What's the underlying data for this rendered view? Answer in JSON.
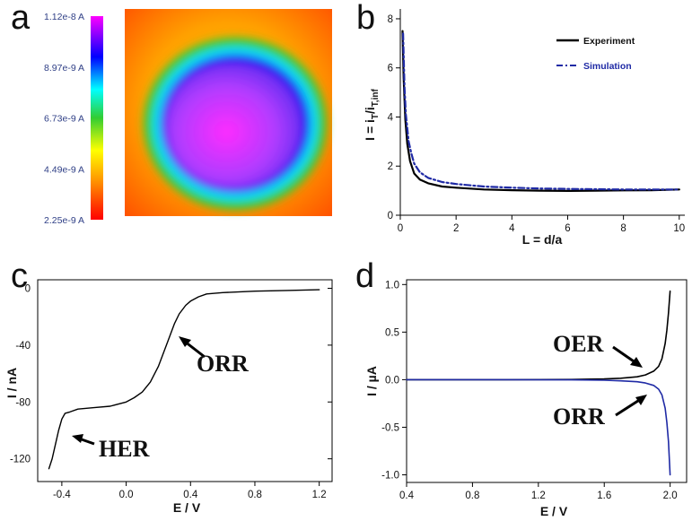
{
  "chart_data": [
    {
      "panel": "a",
      "type": "heatmap",
      "colorbar": {
        "ticks": [
          "1.12e-8 A",
          "8.97e-9 A",
          "6.73e-9 A",
          "4.49e-9 A",
          "2.25e-9 A"
        ],
        "min": 2.25e-09,
        "max": 1.12e-08,
        "colors": [
          "#ff0000",
          "#ff8c00",
          "#ffff00",
          "#32cd32",
          "#00ffff",
          "#0000ff",
          "#ff00ff"
        ]
      },
      "map": {
        "shape": "circular disk",
        "center_value": 1.12e-08,
        "background_value": 3.5e-09
      }
    },
    {
      "panel": "b",
      "type": "line",
      "xlabel": "L = d/a",
      "ylabel": "I = i",
      "ylabel_sub1": "T",
      "ylabel_mid": "/i",
      "ylabel_sub2": "T,inf",
      "xlim": [
        0,
        10.2
      ],
      "ylim": [
        0,
        8.4
      ],
      "xticks": [
        0,
        2,
        4,
        6,
        8,
        10
      ],
      "yticks": [
        0,
        2,
        4,
        6,
        8
      ],
      "legend": [
        {
          "label": "Experiment",
          "color": "#000000",
          "dash": "solid"
        },
        {
          "label": "Simulation",
          "color": "#1f2aa5",
          "dash": "dashdot"
        }
      ],
      "legend_position": "top-right",
      "series": [
        {
          "name": "Experiment",
          "color": "#000000",
          "x": [
            0.08,
            0.12,
            0.18,
            0.25,
            0.35,
            0.5,
            0.7,
            1.0,
            1.5,
            2.0,
            3.0,
            4.0,
            5.0,
            6.0,
            7.0,
            8.0,
            9.0,
            10.0
          ],
          "y": [
            7.5,
            5.6,
            3.9,
            2.9,
            2.2,
            1.7,
            1.45,
            1.3,
            1.17,
            1.12,
            1.05,
            1.02,
            1.0,
            0.99,
            1.0,
            1.01,
            1.02,
            1.05
          ]
        },
        {
          "name": "Simulation",
          "color": "#1f2aa5",
          "x": [
            0.1,
            0.15,
            0.2,
            0.3,
            0.4,
            0.5,
            0.7,
            1.0,
            1.5,
            2.0,
            3.0,
            4.0,
            5.0,
            6.0,
            7.0,
            8.0,
            9.0,
            10.0
          ],
          "y": [
            7.4,
            5.2,
            4.1,
            3.0,
            2.5,
            2.1,
            1.75,
            1.52,
            1.35,
            1.27,
            1.17,
            1.12,
            1.09,
            1.07,
            1.06,
            1.05,
            1.05,
            1.05
          ]
        }
      ]
    },
    {
      "panel": "c",
      "type": "line",
      "xlabel": "E / V",
      "ylabel": "I / nA",
      "xlim": [
        -0.55,
        1.28
      ],
      "ylim": [
        -136,
        6
      ],
      "xticks": [
        -0.4,
        0.0,
        0.4,
        0.8,
        1.2
      ],
      "xtick_labels": [
        "-0.4",
        "0.0",
        "0.4",
        "0.8",
        "1.2"
      ],
      "yticks": [
        0,
        -40,
        -80,
        -120
      ],
      "yticks_right": true,
      "annotations": [
        {
          "text": "ORR",
          "arrow_to": [
            0.32,
            -30
          ]
        },
        {
          "text": "HER",
          "arrow_to": [
            -0.37,
            -109
          ]
        }
      ],
      "series": [
        {
          "color": "#000000",
          "x": [
            -0.48,
            -0.46,
            -0.44,
            -0.42,
            -0.4,
            -0.38,
            -0.35,
            -0.3,
            -0.2,
            -0.1,
            0.0,
            0.05,
            0.1,
            0.15,
            0.2,
            0.25,
            0.3,
            0.33,
            0.37,
            0.4,
            0.45,
            0.5,
            0.6,
            0.8,
            1.0,
            1.2
          ],
          "y": [
            -127,
            -120,
            -110,
            -100,
            -92,
            -88,
            -87,
            -85,
            -84,
            -83,
            -80,
            -77,
            -73,
            -66,
            -55,
            -40,
            -25,
            -18,
            -12,
            -9,
            -6,
            -4,
            -3,
            -2,
            -1.5,
            -1
          ]
        }
      ]
    },
    {
      "panel": "d",
      "type": "line",
      "xlabel": "E / V",
      "ylabel": "I / µA",
      "xlim": [
        0.4,
        2.1
      ],
      "ylim": [
        -1.08,
        1.05
      ],
      "xticks": [
        0.4,
        0.8,
        1.2,
        1.6,
        2.0
      ],
      "xtick_labels": [
        "0.4",
        "0.8",
        "1.2",
        "1.6",
        "2.0"
      ],
      "yticks": [
        1.0,
        0.5,
        0.0,
        -0.5,
        -1.0
      ],
      "ytick_labels": [
        "1.0",
        "0.5",
        "0.0",
        "-0.5",
        "-1.0"
      ],
      "annotations": [
        {
          "text": "OER",
          "arrow_to": [
            1.88,
            0.1
          ]
        },
        {
          "text": "ORR",
          "arrow_to": [
            1.9,
            -0.1
          ]
        }
      ],
      "series": [
        {
          "color": "#000000",
          "x": [
            0.4,
            1.0,
            1.4,
            1.6,
            1.7,
            1.8,
            1.85,
            1.9,
            1.93,
            1.95,
            1.97,
            1.98,
            1.99,
            2.0
          ],
          "y": [
            0.0,
            0.0,
            0.002,
            0.008,
            0.015,
            0.03,
            0.05,
            0.09,
            0.14,
            0.22,
            0.38,
            0.52,
            0.7,
            0.93
          ]
        },
        {
          "color": "#1f2aa5",
          "x": [
            0.4,
            1.0,
            1.4,
            1.6,
            1.7,
            1.8,
            1.85,
            1.9,
            1.93,
            1.95,
            1.97,
            1.98,
            1.99,
            2.0
          ],
          "y": [
            0.0,
            0.0,
            -0.002,
            -0.006,
            -0.012,
            -0.022,
            -0.035,
            -0.06,
            -0.1,
            -0.16,
            -0.3,
            -0.45,
            -0.65,
            -1.0
          ]
        }
      ]
    }
  ]
}
